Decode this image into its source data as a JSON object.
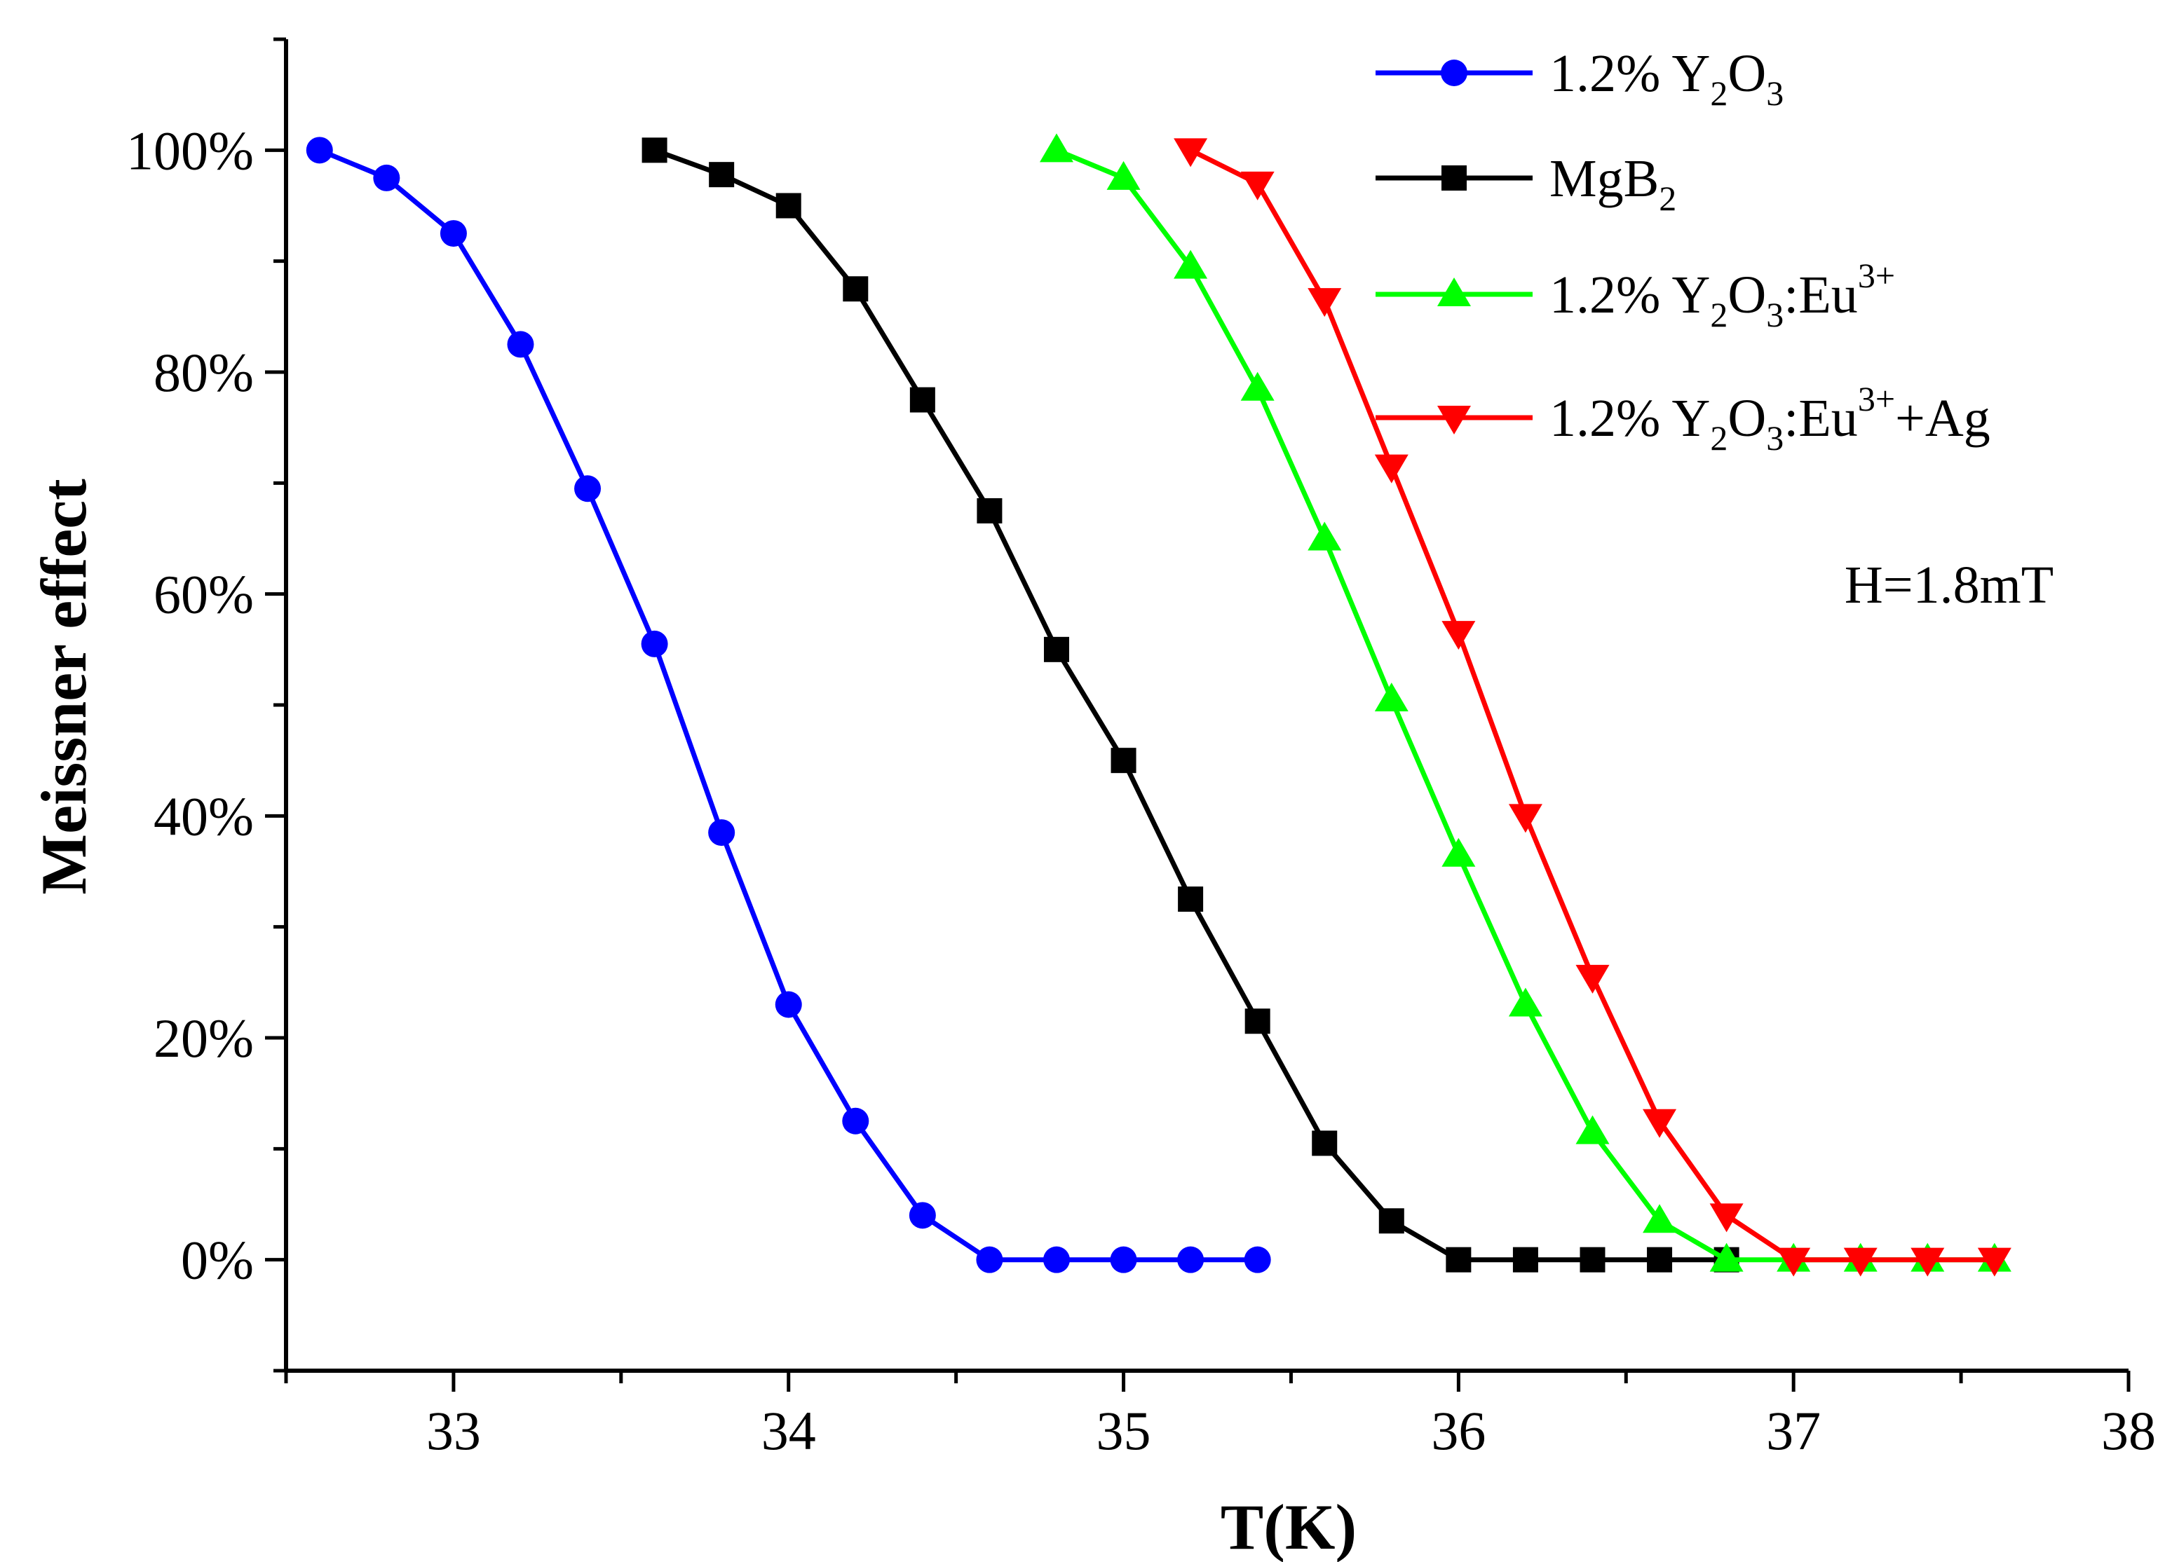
{
  "chart_data": {
    "type": "line",
    "xlabel": "T(K)",
    "ylabel": "Meissner effect",
    "xlim": [
      32.5,
      38
    ],
    "ylim": [
      -10,
      110
    ],
    "x_ticks": [
      33,
      34,
      35,
      36,
      37,
      38
    ],
    "x_tick_labels": [
      "33",
      "34",
      "35",
      "36",
      "37",
      "38"
    ],
    "y_ticks": [
      0,
      20,
      40,
      60,
      80,
      100
    ],
    "y_tick_labels": [
      "0%",
      "20%",
      "40%",
      "60%",
      "80%",
      "100%"
    ],
    "annotation": "H=1.8mT",
    "legend_position": "top-right",
    "series": [
      {
        "name": "1.2% Y2O3",
        "legend": {
          "base": "1.2% Y",
          "parts": [
            [
              "2",
              "sub"
            ],
            [
              "O",
              "base"
            ],
            [
              "3",
              "sub"
            ]
          ]
        },
        "color": "#0000ff",
        "marker": "circle",
        "x": [
          32.6,
          32.8,
          33.0,
          33.2,
          33.4,
          33.6,
          33.8,
          34.0,
          34.2,
          34.4,
          34.6,
          34.8,
          35.0,
          35.2,
          35.4
        ],
        "y": [
          100,
          97.5,
          92.5,
          82.5,
          69.5,
          55.5,
          38.5,
          23,
          12.5,
          4,
          0,
          0,
          0,
          0,
          0
        ]
      },
      {
        "name": "MgB2",
        "legend": {
          "base": "MgB",
          "parts": [
            [
              "2",
              "sub"
            ]
          ]
        },
        "color": "#000000",
        "marker": "square",
        "x": [
          33.6,
          33.8,
          34.0,
          34.2,
          34.4,
          34.6,
          34.8,
          35.0,
          35.2,
          35.4,
          35.6,
          35.8,
          36.0,
          36.2,
          36.4,
          36.6,
          36.8
        ],
        "y": [
          100,
          97.8,
          95,
          87.5,
          77.5,
          67.5,
          55,
          45,
          32.5,
          21.5,
          10.5,
          3.5,
          0,
          0,
          0,
          0,
          0
        ]
      },
      {
        "name": "1.2% Y2O3:Eu3+",
        "legend": {
          "base": "1.2% Y",
          "parts": [
            [
              "2",
              "sub"
            ],
            [
              "O",
              "base"
            ],
            [
              "3",
              "sub"
            ],
            [
              ":Eu",
              "base"
            ],
            [
              "3+",
              "sup"
            ]
          ]
        },
        "color": "#00ff00",
        "marker": "triangle-up",
        "x": [
          34.8,
          35.0,
          35.2,
          35.4,
          35.6,
          35.8,
          36.0,
          36.2,
          36.4,
          36.6,
          36.8,
          37.0,
          37.2,
          37.4,
          37.6
        ],
        "y": [
          100,
          97.5,
          89.5,
          78.5,
          65,
          50.5,
          36.5,
          23,
          11.5,
          3.5,
          0,
          0,
          0,
          0,
          0
        ]
      },
      {
        "name": "1.2% Y2O3:Eu3++Ag",
        "legend": {
          "base": "1.2% Y",
          "parts": [
            [
              "2",
              "sub"
            ],
            [
              "O",
              "base"
            ],
            [
              "3",
              "sub"
            ],
            [
              ":Eu",
              "base"
            ],
            [
              "3+",
              "sup"
            ],
            [
              "+Ag",
              "base"
            ]
          ]
        },
        "color": "#ff0000",
        "marker": "triangle-down",
        "x": [
          35.2,
          35.4,
          35.6,
          35.8,
          36.0,
          36.2,
          36.4,
          36.6,
          36.8,
          37.0,
          37.2,
          37.4,
          37.6
        ],
        "y": [
          100,
          97,
          86.5,
          71.5,
          56.5,
          40,
          25.5,
          12.5,
          4,
          0,
          0,
          0,
          0
        ]
      }
    ]
  }
}
